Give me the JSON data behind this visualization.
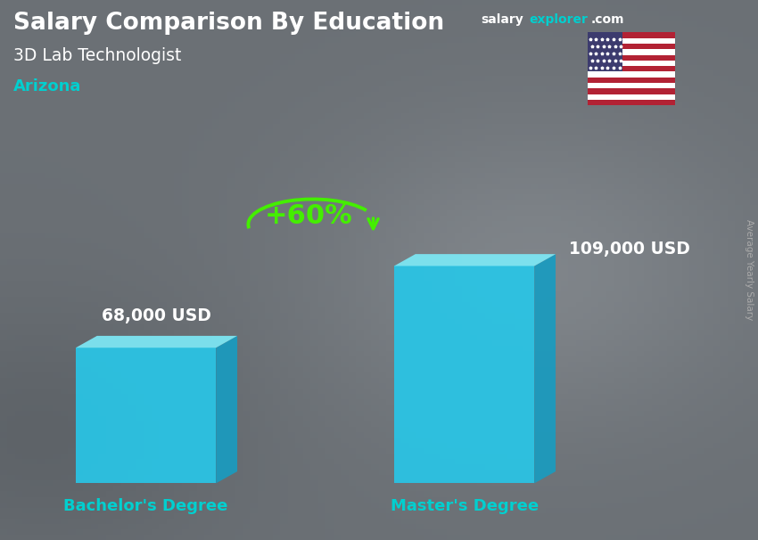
{
  "title": "Salary Comparison By Education",
  "subtitle": "3D Lab Technologist",
  "location": "Arizona",
  "categories": [
    "Bachelor's Degree",
    "Master's Degree"
  ],
  "values": [
    68000,
    109000
  ],
  "value_labels": [
    "68,000 USD",
    "109,000 USD"
  ],
  "pct_change": "+60%",
  "bar_face_color": "#29C5E6",
  "bar_top_color": "#7DE8F5",
  "bar_side_color": "#1A9BBF",
  "bg_color": "#6b7b8a",
  "title_color": "#ffffff",
  "subtitle_color": "#ffffff",
  "location_color": "#00CFCF",
  "label_color": "#ffffff",
  "xticklabel_color": "#00CFCF",
  "pct_color": "#44EE00",
  "arrow_color": "#44EE00",
  "rotated_label_color": "#aaaaaa",
  "site_white": "#ffffff",
  "site_cyan": "#00CFCF"
}
